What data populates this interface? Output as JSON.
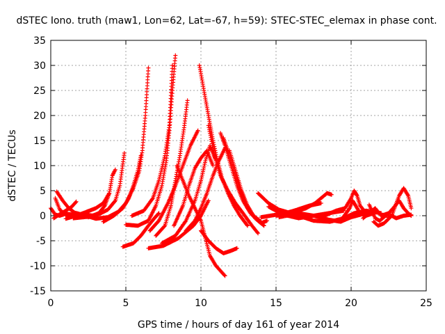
{
  "chart_data": {
    "type": "scatter",
    "title": "dSTEC Iono. truth (maw1, Lon=62, Lat=-67, h=59): STEC-STEC_elemax in phase cont.",
    "xlabel": "GPS time / hours of day 161 of year 2014",
    "ylabel": "dSTEC  / TECUs",
    "xlim": [
      0,
      25
    ],
    "ylim": [
      -15,
      35
    ],
    "xticks": [
      0,
      5,
      10,
      15,
      20,
      25
    ],
    "yticks": [
      -15,
      -10,
      -5,
      0,
      5,
      10,
      15,
      20,
      25,
      30,
      35
    ],
    "grid": true,
    "marker": "+",
    "color": "#ff0000",
    "arcs": [
      [
        [
          0.0,
          1.5
        ],
        [
          0.3,
          0.2
        ],
        [
          0.6,
          0.0
        ],
        [
          1.0,
          0.4
        ],
        [
          1.5,
          0.2
        ]
      ],
      [
        [
          0.2,
          -0.5
        ],
        [
          0.6,
          0.3
        ],
        [
          1.0,
          1.0
        ],
        [
          1.4,
          1.8
        ],
        [
          1.7,
          2.8
        ]
      ],
      [
        [
          0.3,
          3.5
        ],
        [
          0.6,
          1.2
        ],
        [
          1.0,
          0.2
        ],
        [
          1.6,
          0.0
        ],
        [
          2.2,
          0.3
        ],
        [
          2.8,
          0.0
        ]
      ],
      [
        [
          0.4,
          4.8
        ],
        [
          0.8,
          3.0
        ],
        [
          1.2,
          1.5
        ],
        [
          1.6,
          0.6
        ],
        [
          2.1,
          0.2
        ],
        [
          2.6,
          0.0
        ]
      ],
      [
        [
          1.0,
          -0.6
        ],
        [
          1.8,
          0.1
        ],
        [
          2.4,
          0.8
        ],
        [
          3.0,
          1.5
        ],
        [
          3.5,
          2.5
        ],
        [
          3.9,
          4.5
        ]
      ],
      [
        [
          1.5,
          -0.5
        ],
        [
          2.5,
          -0.2
        ],
        [
          3.2,
          0.3
        ],
        [
          3.8,
          1.2
        ],
        [
          4.3,
          3.0
        ],
        [
          4.6,
          6.0
        ],
        [
          4.9,
          12.5
        ]
      ],
      [
        [
          2.0,
          0.3
        ],
        [
          3.0,
          -0.6
        ],
        [
          3.8,
          -0.3
        ],
        [
          4.5,
          0.8
        ],
        [
          5.0,
          2.5
        ],
        [
          5.5,
          5.5
        ],
        [
          5.9,
          9.0
        ],
        [
          6.1,
          13.0
        ],
        [
          6.3,
          20.0
        ],
        [
          6.5,
          29.5
        ]
      ],
      [
        [
          2.5,
          -0.3
        ],
        [
          3.2,
          0.5
        ],
        [
          3.6,
          2.0
        ],
        [
          3.9,
          4.5
        ],
        [
          4.1,
          8.0
        ],
        [
          4.3,
          9.2
        ]
      ],
      [
        [
          3.5,
          -1.2
        ],
        [
          4.2,
          0.0
        ],
        [
          4.8,
          1.5
        ],
        [
          5.2,
          3.5
        ],
        [
          5.5,
          6.0
        ],
        [
          5.8,
          9.0
        ],
        [
          6.0,
          12.0
        ]
      ],
      [
        [
          4.8,
          -6.2
        ],
        [
          5.5,
          -5.5
        ],
        [
          6.0,
          -4.0
        ],
        [
          6.5,
          -2.0
        ],
        [
          6.9,
          -0.5
        ],
        [
          7.2,
          0.5
        ]
      ],
      [
        [
          5.0,
          -1.8
        ],
        [
          5.8,
          -2.0
        ],
        [
          6.5,
          -1.0
        ],
        [
          7.0,
          2.0
        ],
        [
          7.4,
          6.0
        ],
        [
          7.7,
          11.0
        ],
        [
          7.9,
          17.0
        ],
        [
          8.1,
          25.0
        ],
        [
          8.3,
          32.0
        ]
      ],
      [
        [
          5.4,
          0.0
        ],
        [
          6.2,
          1.0
        ],
        [
          6.8,
          3.5
        ],
        [
          7.2,
          7.0
        ],
        [
          7.6,
          12.0
        ],
        [
          7.9,
          18.0
        ],
        [
          8.0,
          24.0
        ],
        [
          8.1,
          30.0
        ]
      ],
      [
        [
          6.5,
          -6.5
        ],
        [
          7.5,
          -6.0
        ],
        [
          8.5,
          -4.5
        ],
        [
          9.5,
          -2.0
        ],
        [
          10.0,
          0.0
        ],
        [
          10.5,
          3.0
        ]
      ],
      [
        [
          6.6,
          -3.0
        ],
        [
          7.2,
          -1.0
        ],
        [
          7.8,
          2.5
        ],
        [
          8.3,
          6.0
        ],
        [
          8.8,
          10.0
        ],
        [
          9.3,
          14.0
        ],
        [
          9.8,
          17.0
        ]
      ],
      [
        [
          7.0,
          -4.0
        ],
        [
          7.6,
          -2.0
        ],
        [
          8.0,
          2.0
        ],
        [
          8.3,
          7.0
        ],
        [
          8.6,
          12.0
        ],
        [
          8.9,
          18.0
        ],
        [
          9.1,
          23.0
        ]
      ],
      [
        [
          7.4,
          -5.5
        ],
        [
          8.3,
          -4.0
        ],
        [
          9.0,
          -1.0
        ],
        [
          9.6,
          3.0
        ],
        [
          10.0,
          7.0
        ],
        [
          10.3,
          11.0
        ],
        [
          10.6,
          14.0
        ],
        [
          11.0,
          11.0
        ]
      ],
      [
        [
          8.2,
          -2.0
        ],
        [
          8.8,
          2.0
        ],
        [
          9.2,
          6.0
        ],
        [
          9.6,
          9.5
        ],
        [
          10.0,
          11.5
        ],
        [
          10.4,
          13.0
        ],
        [
          10.8,
          10.0
        ]
      ],
      [
        [
          8.4,
          10.0
        ],
        [
          8.8,
          7.0
        ],
        [
          9.2,
          4.0
        ],
        [
          9.6,
          1.5
        ],
        [
          10.0,
          -1.0
        ],
        [
          10.3,
          -4.5
        ],
        [
          10.6,
          -8.0
        ],
        [
          11.0,
          -10.0
        ],
        [
          11.6,
          -12.0
        ]
      ],
      [
        [
          9.0,
          -3.0
        ],
        [
          9.6,
          -1.0
        ],
        [
          10.0,
          1.5
        ],
        [
          10.4,
          4.5
        ],
        [
          10.8,
          8.0
        ],
        [
          11.2,
          11.0
        ],
        [
          11.6,
          13.5
        ]
      ],
      [
        [
          9.9,
          30.0
        ],
        [
          10.2,
          25.0
        ],
        [
          10.5,
          20.0
        ],
        [
          10.8,
          15.0
        ],
        [
          11.1,
          11.0
        ],
        [
          11.4,
          7.5
        ],
        [
          11.8,
          4.5
        ],
        [
          12.2,
          2.0
        ],
        [
          12.6,
          0.0
        ],
        [
          13.1,
          -2.0
        ]
      ],
      [
        [
          10.0,
          -3.0
        ],
        [
          10.5,
          -5.0
        ],
        [
          11.0,
          -6.5
        ],
        [
          11.5,
          -7.5
        ],
        [
          12.0,
          -7.0
        ],
        [
          12.4,
          -6.5
        ]
      ],
      [
        [
          10.5,
          18.0
        ],
        [
          10.9,
          12.0
        ],
        [
          11.3,
          8.0
        ],
        [
          11.8,
          5.0
        ],
        [
          12.3,
          2.5
        ],
        [
          12.8,
          0.5
        ],
        [
          13.4,
          -2.0
        ],
        [
          13.8,
          -3.5
        ]
      ],
      [
        [
          11.3,
          16.5
        ],
        [
          11.6,
          14.0
        ],
        [
          12.0,
          10.0
        ],
        [
          12.4,
          6.0
        ],
        [
          12.8,
          3.0
        ],
        [
          13.3,
          0.5
        ],
        [
          13.8,
          -1.0
        ],
        [
          14.2,
          -2.0
        ]
      ],
      [
        [
          11.5,
          15.5
        ],
        [
          11.9,
          12.0
        ],
        [
          12.3,
          8.0
        ],
        [
          12.7,
          4.5
        ],
        [
          13.1,
          1.5
        ],
        [
          13.6,
          -0.5
        ],
        [
          14.0,
          -1.5
        ],
        [
          14.4,
          -1.0
        ]
      ],
      [
        [
          11.9,
          13.0
        ],
        [
          12.3,
          9.0
        ],
        [
          12.7,
          5.0
        ],
        [
          13.1,
          2.0
        ],
        [
          13.5,
          0.0
        ],
        [
          14.0,
          -1.2
        ]
      ],
      [
        [
          13.8,
          4.5
        ],
        [
          14.5,
          2.5
        ],
        [
          15.2,
          1.2
        ],
        [
          16.0,
          0.5
        ],
        [
          16.6,
          0.0
        ]
      ],
      [
        [
          14.0,
          -0.3
        ],
        [
          15.0,
          0.2
        ],
        [
          16.0,
          0.5
        ],
        [
          17.0,
          1.5
        ],
        [
          17.6,
          2.5
        ],
        [
          18.0,
          3.5
        ],
        [
          18.4,
          4.5
        ],
        [
          18.7,
          4.2
        ]
      ],
      [
        [
          14.5,
          1.8
        ],
        [
          15.5,
          0.2
        ],
        [
          16.5,
          -0.5
        ],
        [
          17.5,
          0.0
        ],
        [
          18.5,
          0.5
        ],
        [
          19.5,
          1.0
        ]
      ],
      [
        [
          15.0,
          0.0
        ],
        [
          16.2,
          1.0
        ],
        [
          17.2,
          2.0
        ],
        [
          18.0,
          2.5
        ]
      ],
      [
        [
          15.2,
          -0.3
        ],
        [
          16.5,
          0.5
        ],
        [
          17.5,
          0.0
        ],
        [
          18.5,
          -0.8
        ],
        [
          19.3,
          -1.2
        ],
        [
          20.0,
          -0.3
        ],
        [
          21.0,
          0.5
        ]
      ],
      [
        [
          16.5,
          0.0
        ],
        [
          17.5,
          -1.0
        ],
        [
          18.6,
          -1.2
        ],
        [
          19.5,
          -0.5
        ],
        [
          20.2,
          0.5
        ],
        [
          21.0,
          1.0
        ],
        [
          22.0,
          0.5
        ]
      ],
      [
        [
          18.0,
          -0.3
        ],
        [
          19.0,
          1.0
        ],
        [
          19.6,
          1.5
        ],
        [
          20.0,
          3.5
        ],
        [
          20.2,
          5.0
        ],
        [
          20.4,
          4.0
        ],
        [
          20.6,
          2.0
        ],
        [
          21.0,
          0.5
        ]
      ],
      [
        [
          19.5,
          -0.2
        ],
        [
          19.9,
          1.5
        ],
        [
          20.1,
          3.0
        ],
        [
          20.3,
          2.0
        ],
        [
          20.6,
          0.5
        ],
        [
          21.0,
          0.0
        ],
        [
          21.5,
          0.5
        ]
      ],
      [
        [
          20.8,
          -0.5
        ],
        [
          21.2,
          0.5
        ],
        [
          21.6,
          1.5
        ],
        [
          22.0,
          0.0
        ],
        [
          22.5,
          0.5
        ],
        [
          22.8,
          1.5
        ],
        [
          23.2,
          3.0
        ],
        [
          23.5,
          1.5
        ],
        [
          23.8,
          0.5
        ],
        [
          24.0,
          0.0
        ]
      ],
      [
        [
          21.2,
          2.2
        ],
        [
          21.6,
          -0.5
        ],
        [
          21.9,
          -1.0
        ],
        [
          22.3,
          0.0
        ],
        [
          22.7,
          0.0
        ],
        [
          23.0,
          -0.5
        ],
        [
          23.5,
          0.0
        ],
        [
          24.0,
          0.2
        ]
      ],
      [
        [
          21.5,
          -1.2
        ],
        [
          21.8,
          -2.0
        ],
        [
          22.2,
          -1.5
        ],
        [
          22.7,
          0.0
        ],
        [
          23.2,
          4.0
        ],
        [
          23.5,
          5.5
        ],
        [
          23.8,
          4.0
        ],
        [
          24.0,
          1.5
        ]
      ]
    ]
  }
}
